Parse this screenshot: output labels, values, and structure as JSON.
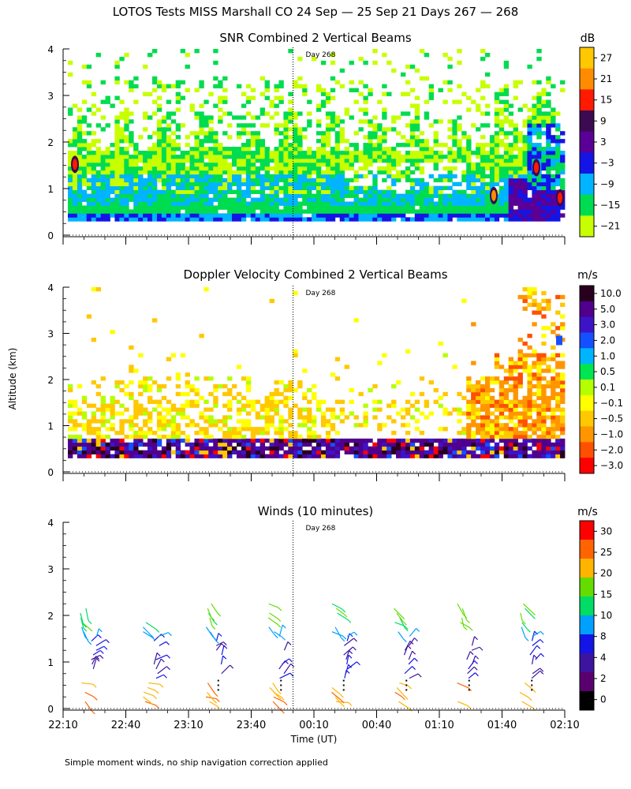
{
  "figure": {
    "title": "LOTOS Tests MISS Marshall CO  24 Sep — 25 Sep 21 Days 267 — 268",
    "ylabel": "Altitude (km)",
    "xlabel": "Time (UT)",
    "footnote": "Simple moment winds, no ship navigation correction applied",
    "day_marker": "Day 268"
  },
  "chart_data": [
    {
      "type": "heatmap",
      "title": "SNR Combined 2 Vertical Beams",
      "ylim": [
        0,
        4
      ],
      "yticks": [
        "0",
        "1",
        "2",
        "3",
        "4"
      ],
      "day_marker_time": "00:00",
      "colorbar": {
        "unit": "dB",
        "labels": [
          "27",
          "21",
          "15",
          "9",
          "3",
          "−3",
          "−9",
          "−15",
          "−21"
        ],
        "colors": [
          "#ffc800",
          "#ff8c00",
          "#ff1a00",
          "#3c0a50",
          "#5a0096",
          "#1414e6",
          "#00b4ff",
          "#00dc50",
          "#c8ff00"
        ]
      }
    },
    {
      "type": "heatmap",
      "title": "Doppler Velocity Combined 2 Vertical Beams",
      "ylim": [
        0,
        4
      ],
      "yticks": [
        "0",
        "1",
        "2",
        "3",
        "4"
      ],
      "day_marker_time": "00:00",
      "colorbar": {
        "unit": "m/s",
        "labels": [
          "10.0",
          "5.0",
          "3.0",
          "2.0",
          "1.0",
          "0.5",
          "0.1",
          "−0.1",
          "−0.5",
          "−1.0",
          "−2.0",
          "−3.0"
        ],
        "colors": [
          "#28001e",
          "#50008c",
          "#3c14c8",
          "#1450ff",
          "#00b4ff",
          "#00e650",
          "#b4ff00",
          "#ffff00",
          "#ffc800",
          "#ff9600",
          "#ff5000",
          "#ff0000"
        ]
      }
    },
    {
      "type": "scatter",
      "title": "Winds (10 minutes)",
      "ylim": [
        0,
        4
      ],
      "yticks": [
        "0",
        "1",
        "2",
        "3",
        "4"
      ],
      "day_marker_time": "00:00",
      "x_ticks": [
        "22:10",
        "22:40",
        "23:10",
        "23:40",
        "00:10",
        "00:40",
        "01:10",
        "01:40",
        "02:10"
      ],
      "barb_columns": [
        "22:25",
        "22:55",
        "23:25",
        "23:55",
        "00:25",
        "00:55",
        "01:25",
        "01:55"
      ],
      "colorbar": {
        "unit": "m/s",
        "labels": [
          "30",
          "25",
          "20",
          "15",
          "10",
          "8",
          "4",
          "2",
          "0"
        ],
        "colors": [
          "#ff0000",
          "#ff6400",
          "#ffb400",
          "#64dc00",
          "#00dc64",
          "#00a0ff",
          "#1414e6",
          "#3c14a0",
          "#5a006e",
          "#000000"
        ]
      }
    }
  ]
}
